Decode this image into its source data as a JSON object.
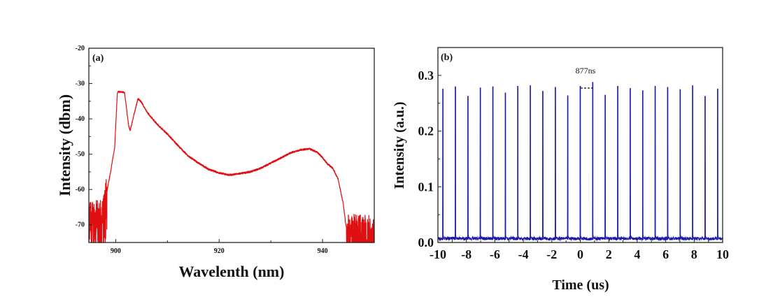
{
  "chart_data": [
    {
      "type": "line",
      "panel_label": "(a)",
      "xlabel": "Wavelenth (nm)",
      "ylabel": "Intensity (dbm)",
      "xlim": [
        894.8,
        950
      ],
      "ylim": [
        -75,
        -20
      ],
      "xticks": [
        900,
        920,
        940
      ],
      "yticks": [
        -20,
        -30,
        -40,
        -50,
        -60,
        -70
      ],
      "grid": false,
      "color": "#e01010",
      "series": [
        {
          "name": "spectrum",
          "x": [
            894.8,
            897.5,
            898,
            899,
            899.8,
            900.3,
            900.5,
            901.7,
            902,
            902.5,
            902.8,
            903.5,
            904.3,
            905,
            906,
            908,
            910,
            912,
            914,
            916,
            918,
            920,
            922,
            924,
            926,
            928,
            930,
            932,
            934,
            936,
            937.5,
            939,
            940,
            941,
            942,
            943,
            944,
            944.5,
            945,
            950
          ],
          "y": [
            -68,
            -68,
            -63,
            -55,
            -48,
            -33,
            -32.3,
            -32.5,
            -36,
            -42,
            -43.3,
            -39,
            -34.3,
            -35.3,
            -38,
            -41.5,
            -44.3,
            -47.5,
            -50.5,
            -52.5,
            -54.3,
            -55.3,
            -55.9,
            -55.5,
            -55,
            -54,
            -52.5,
            -51,
            -49.5,
            -48.7,
            -48.5,
            -49.5,
            -51,
            -52.8,
            -54,
            -57,
            -64,
            -70,
            -72,
            -72
          ]
        }
      ]
    },
    {
      "type": "line",
      "panel_label": "(b)",
      "xlabel": "Time (us)",
      "ylabel": "Intensity (a.u.)",
      "xlim": [
        -10,
        10
      ],
      "ylim": [
        0,
        0.35
      ],
      "xticks": [
        -10,
        -8,
        -6,
        -4,
        -2,
        0,
        2,
        4,
        6,
        8,
        10
      ],
      "yticks": [
        "0.0",
        "0.1",
        "0.2",
        "0.3"
      ],
      "grid": false,
      "color": "#1a1aa8",
      "annotation": "877ns",
      "pulse_period_us": 0.877,
      "series": [
        {
          "name": "pulse train",
          "pulse_times": [
            -9.65,
            -8.77,
            -7.89,
            -7.02,
            -6.14,
            -5.26,
            -4.39,
            -3.51,
            -2.63,
            -1.75,
            -0.88,
            0,
            0.877,
            1.75,
            2.63,
            3.51,
            4.39,
            5.26,
            6.14,
            7.02,
            7.89,
            8.77,
            9.65
          ],
          "peak_values": [
            0.276,
            0.28,
            0.263,
            0.278,
            0.28,
            0.269,
            0.281,
            0.282,
            0.272,
            0.279,
            0.264,
            0.281,
            0.288,
            0.265,
            0.281,
            0.277,
            0.273,
            0.281,
            0.279,
            0.275,
            0.282,
            0.263,
            0.276
          ]
        }
      ]
    }
  ]
}
